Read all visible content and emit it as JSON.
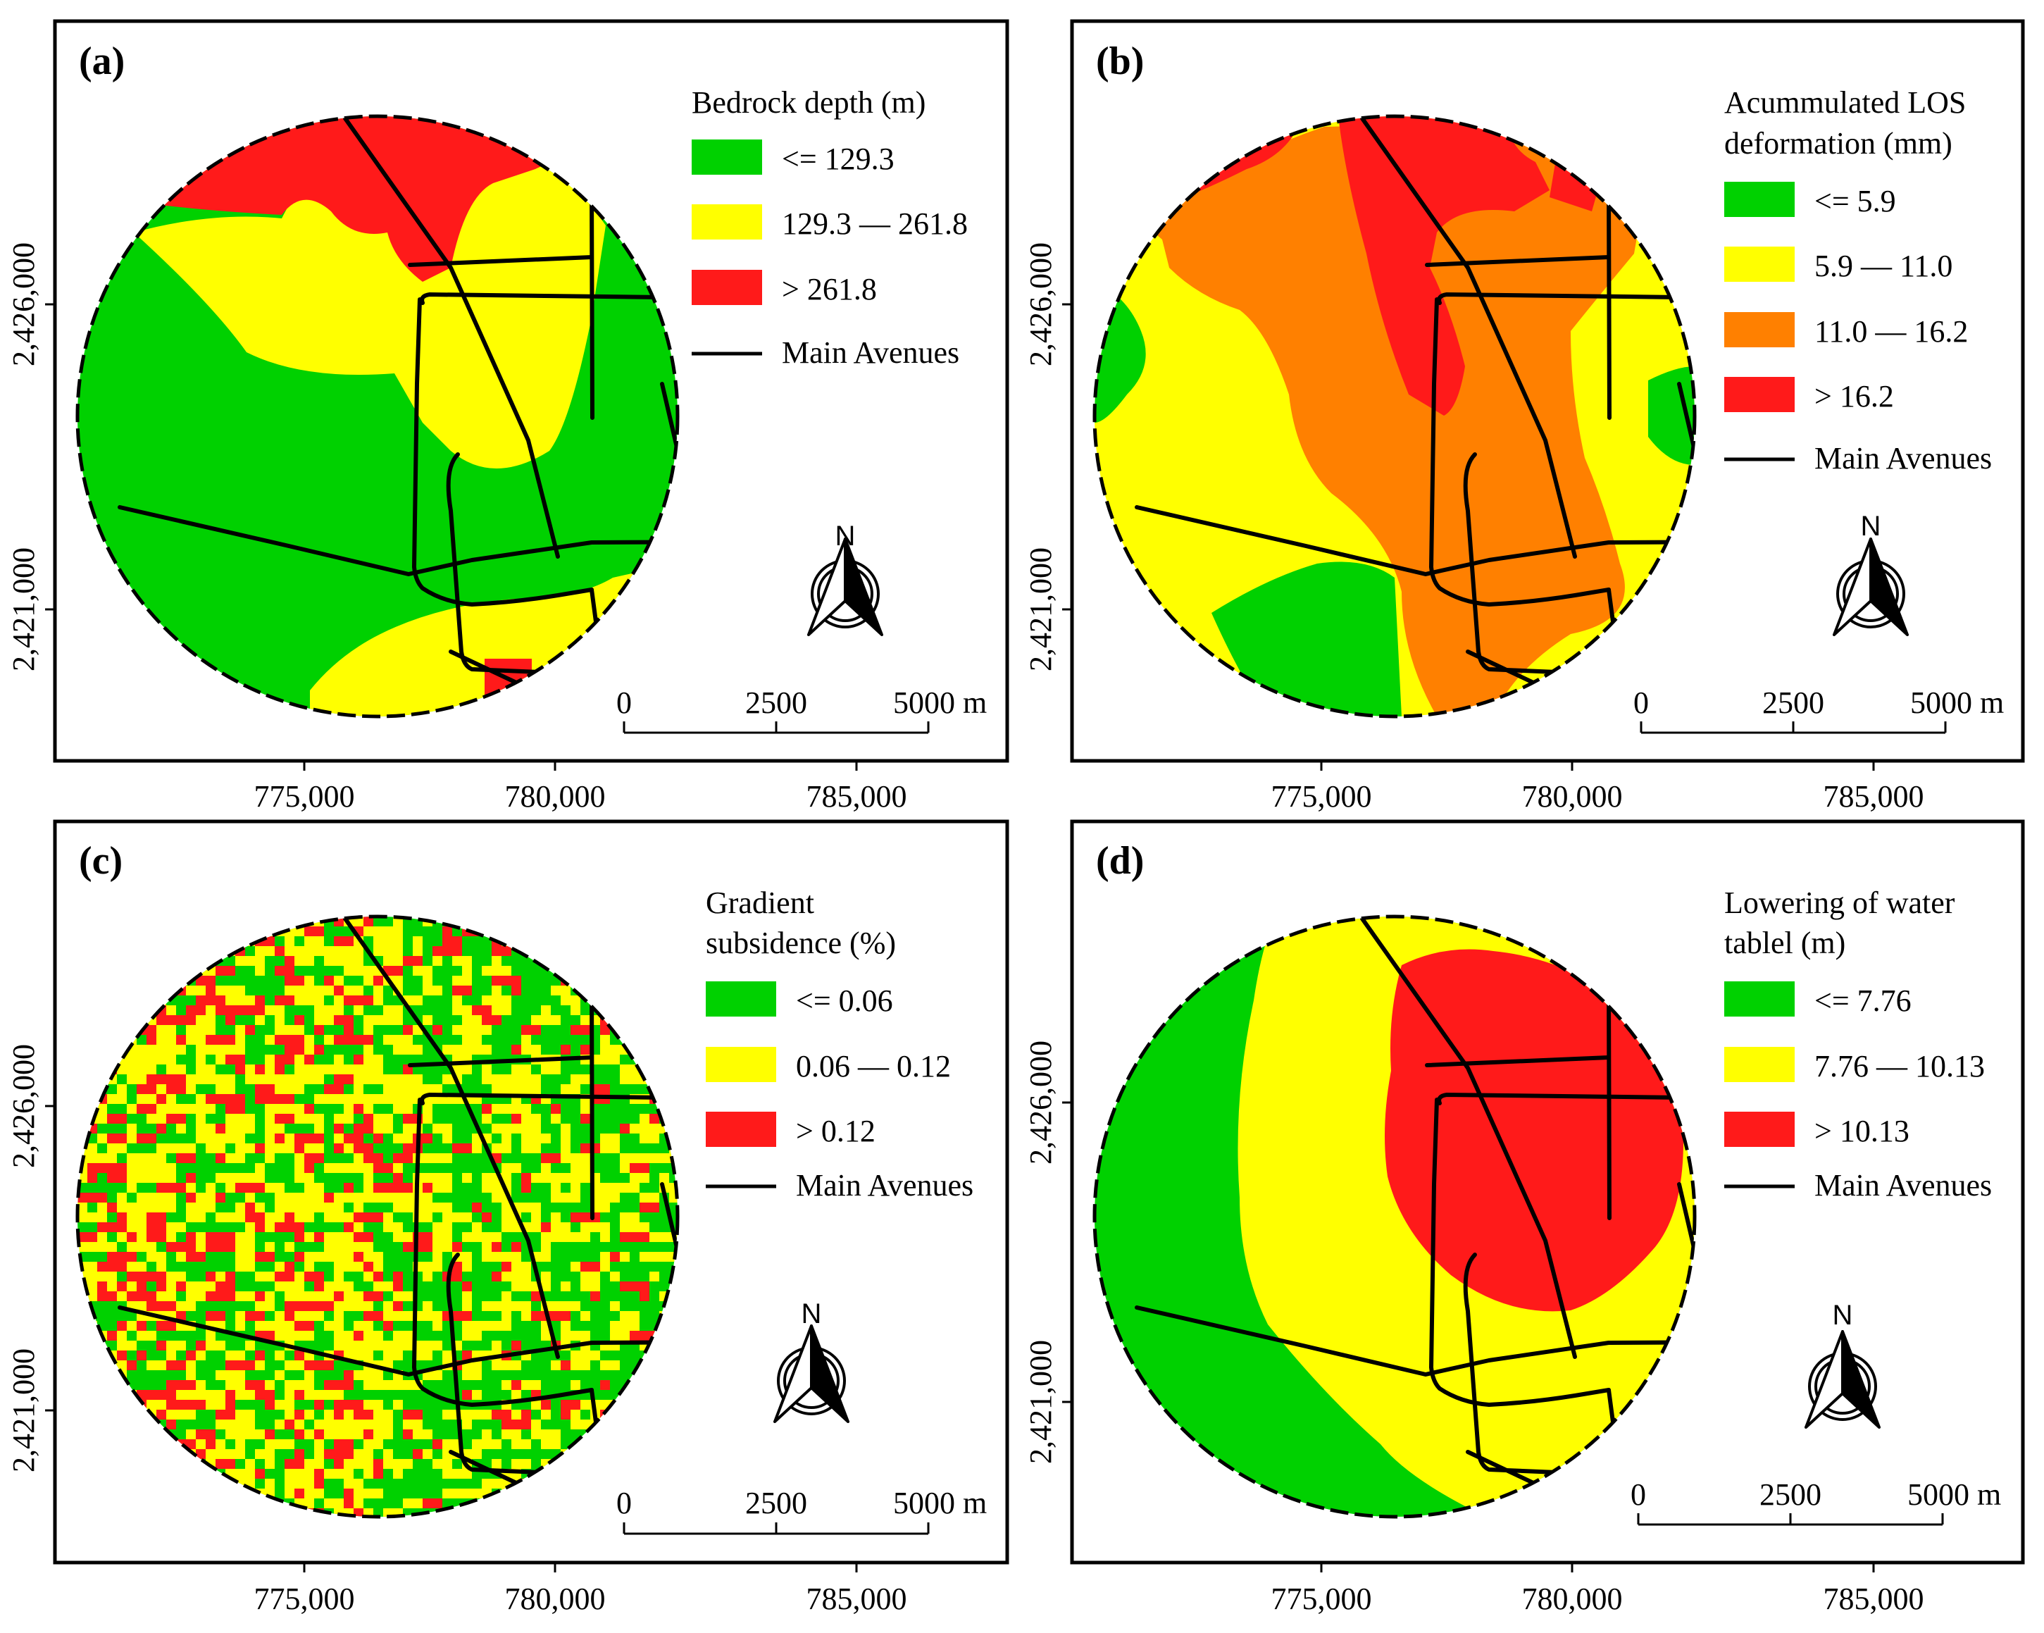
{
  "colors": {
    "green": "#00d100",
    "yellow": "#ffff00",
    "orange": "#ff8000",
    "red": "#ff1a1a",
    "road": "#000000"
  },
  "x_ticks": [
    "775,000",
    "780,000",
    "785,000"
  ],
  "y_ticks": [
    "2,426,000",
    "2,421,000"
  ],
  "north_label": "N",
  "scalebar": {
    "labels": [
      "0",
      "2500",
      "5000 m"
    ]
  },
  "panels": [
    {
      "label": "(a)",
      "legend_title": [
        "Bedrock depth (m)"
      ],
      "classes": [
        {
          "label": "<= 129.3",
          "color": "#00d100"
        },
        {
          "label": "129.3 — 261.8",
          "color": "#ffff00"
        },
        {
          "label": "> 261.8",
          "color": "#ff1a1a"
        }
      ],
      "roads_label": "Main Avenues"
    },
    {
      "label": "(b)",
      "legend_title": [
        "Acummulated LOS",
        "deformation (mm)"
      ],
      "classes": [
        {
          "label": "<= 5.9",
          "color": "#00d100"
        },
        {
          "label": "5.9 — 11.0",
          "color": "#ffff00"
        },
        {
          "label": "11.0 — 16.2",
          "color": "#ff8000"
        },
        {
          "label": "> 16.2",
          "color": "#ff1a1a"
        }
      ],
      "roads_label": "Main Avenues"
    },
    {
      "label": "(c)",
      "legend_title": [
        "Gradient",
        "subsidence (%)"
      ],
      "classes": [
        {
          "label": "<= 0.06",
          "color": "#00d100"
        },
        {
          "label": "0.06 — 0.12",
          "color": "#ffff00"
        },
        {
          "label": "> 0.12",
          "color": "#ff1a1a"
        }
      ],
      "roads_label": "Main Avenues"
    },
    {
      "label": "(d)",
      "legend_title": [
        "Lowering of water",
        "tablel (m)"
      ],
      "classes": [
        {
          "label": "<= 7.76",
          "color": "#00d100"
        },
        {
          "label": "7.76 — 10.13",
          "color": "#ffff00"
        },
        {
          "label": "> 10.13",
          "color": "#ff1a1a"
        }
      ],
      "roads_label": "Main Avenues"
    }
  ]
}
